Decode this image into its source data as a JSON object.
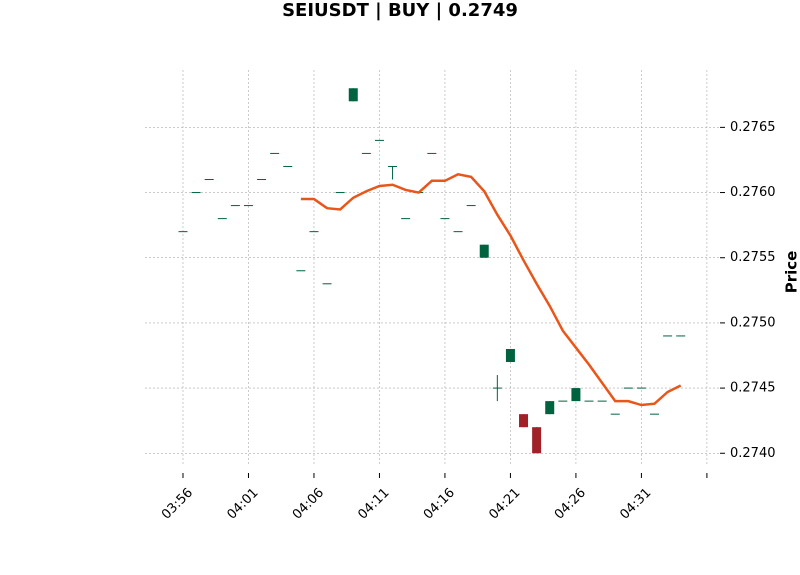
{
  "chart_data": {
    "type": "candlestick",
    "title": "SEIUSDT | BUY | 0.2749",
    "ylabel": "Price",
    "up_color": "#006340",
    "down_color": "#a02128",
    "open": [
      0.2757,
      0.276,
      0.2761,
      0.2758,
      0.2759,
      0.2759,
      0.2761,
      0.2763,
      0.2762,
      0.2754,
      0.2757,
      0.2753,
      0.276,
      0.2767,
      0.2763,
      0.2764,
      0.2762,
      0.2758,
      0.276,
      0.2763,
      0.2758,
      0.2757,
      0.2759,
      0.2755,
      0.2745,
      0.2747,
      0.2743,
      0.2742,
      0.2743,
      0.2744,
      0.2744,
      0.2744,
      0.2744,
      0.2743,
      0.2745,
      0.2745,
      0.2743,
      0.2749,
      0.2749
    ],
    "high": [
      0.2757,
      0.276,
      0.2761,
      0.2758,
      0.2759,
      0.2759,
      0.2761,
      0.2763,
      0.2762,
      0.2754,
      0.2757,
      0.2753,
      0.276,
      0.2768,
      0.2763,
      0.2764,
      0.2762,
      0.2758,
      0.276,
      0.2763,
      0.2758,
      0.2757,
      0.2759,
      0.2756,
      0.2746,
      0.2748,
      0.2743,
      0.2742,
      0.2744,
      0.2744,
      0.2745,
      0.2744,
      0.2744,
      0.2743,
      0.2745,
      0.2745,
      0.2743,
      0.2749,
      0.2749
    ],
    "low": [
      0.2757,
      0.276,
      0.2761,
      0.2758,
      0.2759,
      0.2759,
      0.2761,
      0.2763,
      0.2762,
      0.2754,
      0.2757,
      0.2753,
      0.276,
      0.2767,
      0.2763,
      0.2764,
      0.2761,
      0.2758,
      0.276,
      0.2763,
      0.2758,
      0.2757,
      0.2759,
      0.2755,
      0.2744,
      0.2747,
      0.2742,
      0.274,
      0.2743,
      0.2744,
      0.2744,
      0.2744,
      0.2744,
      0.2743,
      0.2745,
      0.2745,
      0.2743,
      0.2749,
      0.2749
    ],
    "close": [
      0.2757,
      0.276,
      0.2761,
      0.2758,
      0.2759,
      0.2759,
      0.2761,
      0.2763,
      0.2762,
      0.2754,
      0.2757,
      0.2753,
      0.276,
      0.2768,
      0.2763,
      0.2764,
      0.2762,
      0.2758,
      0.276,
      0.2763,
      0.2758,
      0.2757,
      0.2759,
      0.2756,
      0.2745,
      0.2748,
      0.2742,
      0.274,
      0.2744,
      0.2744,
      0.2745,
      0.2744,
      0.2744,
      0.2743,
      0.2745,
      0.2745,
      0.2743,
      0.2749,
      0.2749
    ],
    "ma": {
      "color": "#e8561a",
      "values": [
        null,
        null,
        null,
        null,
        null,
        null,
        null,
        null,
        null,
        0.27595,
        0.27595,
        0.27588,
        0.27587,
        0.27596,
        0.27601,
        0.27605,
        0.27606,
        0.27602,
        0.276,
        0.27609,
        0.27609,
        0.27614,
        0.27612,
        0.27601,
        0.27583,
        0.27567,
        0.27548,
        0.2753,
        0.27513,
        0.27494,
        0.27481,
        0.27468,
        0.27454,
        0.2744,
        0.2744,
        0.27437,
        0.27438,
        0.27447,
        0.27452
      ]
    },
    "xlim": [
      -2.9,
      41
    ],
    "xticks": [
      {
        "value": 0,
        "label": "03:56"
      },
      {
        "value": 5,
        "label": "04:01"
      },
      {
        "value": 10,
        "label": "04:06"
      },
      {
        "value": 15,
        "label": "04:11"
      },
      {
        "value": 20,
        "label": "04:16"
      },
      {
        "value": 25,
        "label": "04:21"
      },
      {
        "value": 30,
        "label": "04:26"
      },
      {
        "value": 35,
        "label": "04:31"
      },
      {
        "value": 40,
        "label": null
      }
    ],
    "ylim": [
      0.27391,
      0.27694
    ],
    "yticks": [
      {
        "value": 0.274,
        "label": "0.2740"
      },
      {
        "value": 0.2745,
        "label": "0.2745"
      },
      {
        "value": 0.275,
        "label": "0.2750"
      },
      {
        "value": 0.2755,
        "label": "0.2755"
      },
      {
        "value": 0.276,
        "label": "0.2760"
      },
      {
        "value": 0.2765,
        "label": "0.2765"
      }
    ],
    "grid": true
  }
}
